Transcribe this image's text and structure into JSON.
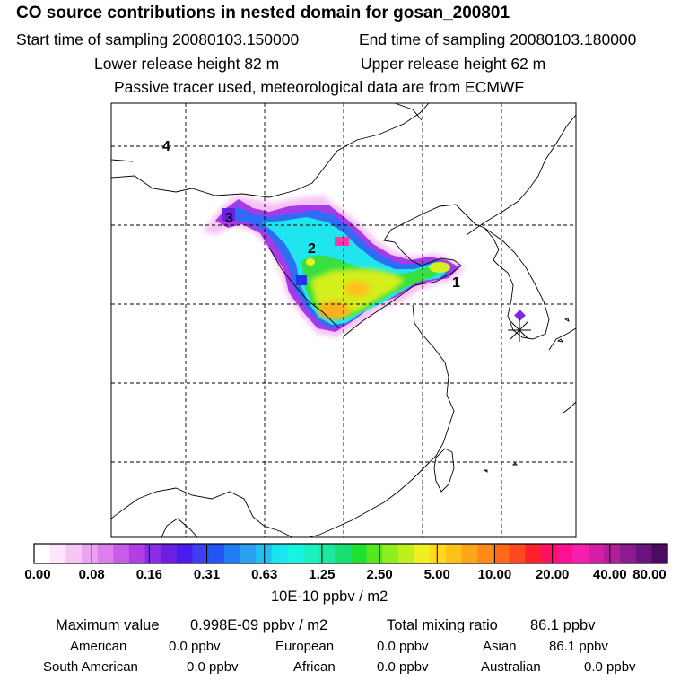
{
  "header": {
    "title": "CO  source contributions in nested domain for gosan_200801",
    "start_label": "Start time of sampling 20080103.150000",
    "end_label": "End time of sampling 20080103.180000",
    "lower_label": "Lower release height   82 m",
    "upper_label": "Upper release height   62 m",
    "tracer_label": "Passive tracer used, meteorological data are from ECMWF"
  },
  "chart_data": {
    "type": "heatmap",
    "title": "CO  source contributions in nested domain for gosan_200801",
    "colorbar": {
      "ticks": [
        "0.00",
        "0.08",
        "0.16",
        "0.31",
        "0.63",
        "1.25",
        "2.50",
        "5.00",
        "10.00",
        "20.00",
        "40.00",
        "80.00"
      ],
      "unit_label": "10E-10 ppbv / m2",
      "colors": [
        "#ffffff",
        "#fde6fb",
        "#f6c6f4",
        "#eba4ef",
        "#de7ff0",
        "#c85ce8",
        "#b03fe8",
        "#8a2de6",
        "#6a1fe3",
        "#4b1cf0",
        "#3f3ef0",
        "#2255f3",
        "#1f7df3",
        "#2aa0f2",
        "#1fc0f0",
        "#19e5f0",
        "#17f4e0",
        "#1af0c0",
        "#1de8a0",
        "#17e070",
        "#20e030",
        "#55e81f",
        "#90ee1f",
        "#c0ef1f",
        "#eef01f",
        "#ffd81f",
        "#ffc018",
        "#ffa51a",
        "#ff8a1a",
        "#ff6a1a",
        "#ff4a20",
        "#ff2030",
        "#ff1060",
        "#ff1090",
        "#f81fb0",
        "#d21fa5",
        "#b01f9a",
        "#8c1a90",
        "#6a1480",
        "#4a0c60"
      ],
      "min": 0.0,
      "max": 80.0
    },
    "region_labels": [
      "1",
      "2",
      "3",
      "4"
    ]
  },
  "footer": {
    "max_label": "Maximum value",
    "max_value": "0.998E-09 ppbv / m2",
    "total_label": "Total mixing ratio",
    "total_value": "86.1 ppbv",
    "sources": [
      {
        "name": "American",
        "value": "0.0 ppbv"
      },
      {
        "name": "European",
        "value": "0.0 ppbv"
      },
      {
        "name": "Asian",
        "value": "86.1 ppbv"
      },
      {
        "name": "South American",
        "value": "0.0 ppbv"
      },
      {
        "name": "African",
        "value": "0.0 ppbv"
      },
      {
        "name": "Australian",
        "value": "0.0 ppbv"
      }
    ]
  }
}
